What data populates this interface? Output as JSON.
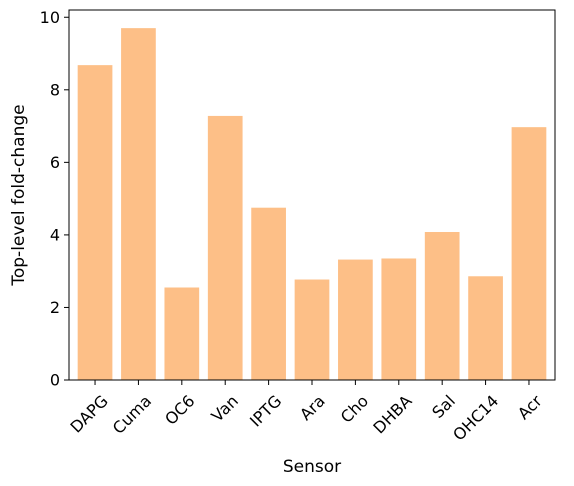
{
  "chart_data": {
    "type": "bar",
    "categories": [
      "DAPG",
      "Cuma",
      "OC6",
      "Van",
      "IPTG",
      "Ara",
      "Cho",
      "DHBA",
      "Sal",
      "OHC14",
      "Acr"
    ],
    "values": [
      8.68,
      9.7,
      2.55,
      7.28,
      4.75,
      2.77,
      3.32,
      3.35,
      4.08,
      2.86,
      6.97
    ],
    "title": "",
    "xlabel": "Sensor",
    "ylabel": "Top-level fold-change",
    "ylim": [
      0,
      10.2
    ],
    "yticks": [
      0,
      2,
      4,
      6,
      8,
      10
    ],
    "grid": false,
    "bar_color": "#fdbf87"
  }
}
